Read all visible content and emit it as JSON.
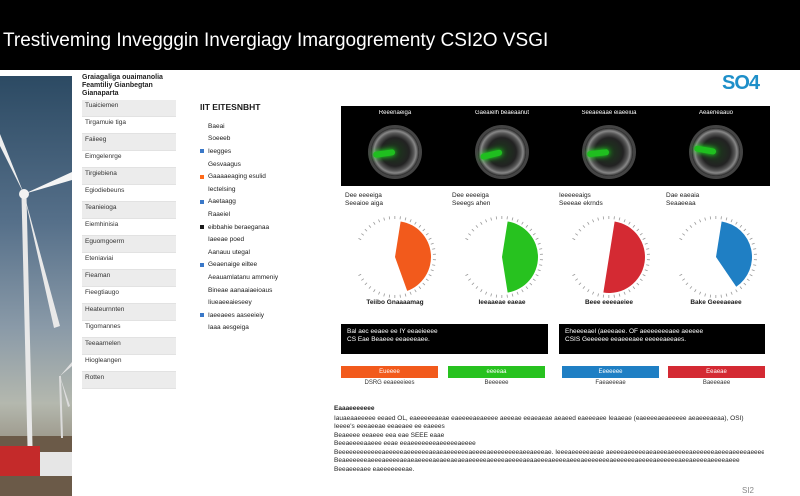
{
  "header": {
    "title": "Trestiveming Invegggin Invergiagy Imargogrementy CSI2O VSGI",
    "brand": "SO4"
  },
  "sidebar": {
    "heading": [
      "Graiagaliga ouaimanolia",
      "Feamtiliy Gianbegtan",
      "Gianaparta"
    ],
    "items": [
      "Tuaiciemen",
      "Tirgamuie tiga",
      "Faiieeg",
      "Eimgelenrge",
      "Tirgiebiena",
      "Egiodiebeuns",
      "Teanieioga",
      "Eiemhinisia",
      "Eguomgoerrn",
      "Eteniaviai",
      "Fieaman",
      "Fieegtiaugo",
      "Heateurnnten",
      "Tigomannes",
      "Teeaarnelen",
      "Hiogleangen",
      "Rotten"
    ]
  },
  "keys": {
    "heading": "IIT EITESNBHT",
    "items": [
      {
        "label": "Baeai",
        "color": "#ffffff"
      },
      {
        "label": "Soeeeb",
        "color": "#ffffff"
      },
      {
        "label": "Ieegges",
        "color": "#3a78c8"
      },
      {
        "label": "Gesvaagus",
        "color": "#ffffff"
      },
      {
        "label": "Gaaaaeaging esulid",
        "color": "#ff6a1a"
      },
      {
        "label": "Iectelsing",
        "color": "#ffffff"
      },
      {
        "label": "Aaetaagg",
        "color": "#3a78c8"
      },
      {
        "label": "Raaeiel",
        "color": "#ffffff"
      },
      {
        "label": "eibbahie beraeganaa",
        "color": "#1a1a1a"
      },
      {
        "label": "Iaeeae poed",
        "color": "#ffffff"
      },
      {
        "label": "Aanauu utegal",
        "color": "#ffffff"
      },
      {
        "label": "Geaenaige eiltee",
        "color": "#3a78c8"
      },
      {
        "label": "Aeauamlatanu ammeniy",
        "color": "#ffffff"
      },
      {
        "label": "Bineae aanaaiaeioaus",
        "color": "#ffffff"
      },
      {
        "label": "Iiueaeeaieseey",
        "color": "#ffffff"
      },
      {
        "label": "Iaeeaees aaseeieiy",
        "color": "#3a78c8"
      },
      {
        "label": "Iaaa aesgeiga",
        "color": "#ffffff"
      }
    ]
  },
  "gauges": [
    {
      "label": "Reeenaeiga",
      "sub1": "Dee eeeeiga",
      "sub2": "Seeaioe aiga",
      "caption": "Teiibo Gnaaaamag",
      "color": "#f25a1c",
      "fraction": 0.42,
      "needle_deg": -8
    },
    {
      "label": "Gaeaielh beaeaanut",
      "sub1": "Dee eeeeiga",
      "sub2": "Seeegs ahen",
      "caption": "Ieeaaeae eaeae",
      "color": "#27c21f",
      "fraction": 0.45,
      "needle_deg": -14
    },
    {
      "label": "Seeaeeaae eiaeeiua",
      "sub1": "Ieeeeeaigs",
      "sub2": "Seeeae ekrnds",
      "caption": "Beee eeeeaeiee",
      "color": "#d42a33",
      "fraction": 0.5,
      "needle_deg": -6
    },
    {
      "label": "Aeaeneaauo",
      "sub1": "Dae eaeaia",
      "sub2": "Seaaeeaa",
      "caption": "Bake Geeeaeaee",
      "color": "#1f7fc4",
      "fraction": 0.38,
      "needle_deg": 10
    }
  ],
  "darkbars": [
    {
      "line1": "Bal aec eeaee ee IY eeaeieeee",
      "line2": "CS Eae Beaeee eeaeeeaee."
    },
    {
      "line1": "Eheeeeael (aeeeaee. OF aeeeeeeeaee aeeeee",
      "line2": "CSIS Geeeeee eeaeeeaee eeeeeaeeaes."
    }
  ],
  "colorbars": [
    {
      "label": "Eueeee",
      "under": "DSRG eeaeeeiees",
      "color": "#f25a1c"
    },
    {
      "label": "eeeeaa",
      "under": "Beeeeee",
      "color": "#27c21f"
    },
    {
      "label": "Eeeeeee",
      "under": "Faeaeeeae",
      "color": "#1f7fc4"
    },
    {
      "label": "Eeaeae",
      "under": "Baeeeaee",
      "color": "#d42a33"
    }
  ],
  "notes": {
    "heading": "Eaaaeeeeeee",
    "lines": [
      "Iauaeaaeeeee eeaed OL, eaeeeeeaeae eaeeeeaeaeeee aeeeae eeaeaeae aeaeed eaeeeaee Ieaaeae (eaeeeeaeaeeeee aeaeeeaeaa), OSI)",
      "Ieeee's eeeaeeae eeaeaee ee eaeees",
      "Beaeeee eeaeee eea eae SEEE eaae",
      "Beeaeeeeaaeee eeae eeaeeeeeeeaeeeeeaeeee",
      "Beeeeeeeeeeeeaeeeeeaeeeeeeaeaeaeeeeeeaeeeeaeeeeeeeeaeeaeeeae.    Ieeeaeeeeeaeae aeeeeaeeeeeaeaeeeaeeeeeaeeeeeeaeeeaeeeeaeeeeeeeeee",
      "Beaeeeeeeaeeeaeeeeaeaeaeeeeaeaeeaeaeaeeeeeaeeeeaeeeeaeaaeeeaeeeeaeeeaeeeeeeeaeeeeeeaeeeeaeeeeeeaeeaeeeeaeeeeaeee",
      "Beeaeeeaee eaeeeeeeeae."
    ]
  },
  "page": {
    "number": "SI2"
  }
}
